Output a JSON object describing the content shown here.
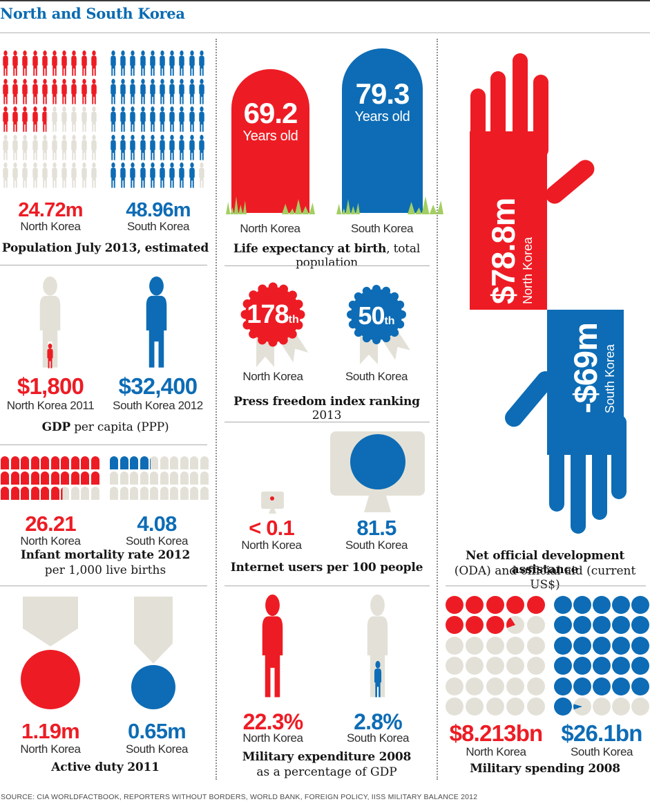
{
  "title": "North and South Korea",
  "source": "SOURCE: CIA WORLDFACTBOOK, REPORTERS WITHOUT BORDERS, WORLD BANK, FOREIGN POLICY, IISS MILITARY BALANCE 2012",
  "colors": {
    "red": "#ed1c24",
    "blue": "#0d6cb5",
    "gray": "#e3e1d7",
    "green": "#a3cf62",
    "title_blue": "#0a6bb2"
  },
  "population": {
    "caption": "Population July 2013, estimated",
    "north": {
      "value": "24.72m",
      "label": "North Korea",
      "count": 24.72,
      "total": 50,
      "columns": 10
    },
    "south": {
      "value": "48.96m",
      "label": "South Korea",
      "count": 48.96,
      "total": 50,
      "columns": 10
    }
  },
  "life_expectancy": {
    "caption_bold": "Life expectancy at birth",
    "caption_rest": ", total population",
    "north": {
      "value": "69.2",
      "unit": "Years old",
      "label": "North Korea"
    },
    "south": {
      "value": "79.3",
      "unit": "Years old",
      "label": "South Korea"
    }
  },
  "gdp": {
    "caption_bold": "GDP",
    "caption_rest": " per capita (PPP)",
    "north": {
      "value": "$1,800",
      "label": "North Korea 2011"
    },
    "south": {
      "value": "$32,400",
      "label": "South Korea 2012"
    }
  },
  "press_freedom": {
    "caption_bold": "Press freedom index ranking",
    "caption_rest": " 2013",
    "north": {
      "value": "178",
      "suffix": "th",
      "label": "North Korea"
    },
    "south": {
      "value": "50",
      "suffix": "th",
      "label": "South Korea"
    }
  },
  "infant_mortality": {
    "caption_bold": "Infant mortality rate 2012",
    "caption_rest": "per 1,000 live births",
    "north": {
      "value": "26.21",
      "label": "North Korea",
      "count": 26.21,
      "total": 30,
      "columns": 10
    },
    "south": {
      "value": "4.08",
      "label": "South Korea",
      "count": 4.08,
      "total": 30,
      "columns": 10
    }
  },
  "internet": {
    "caption": "Internet users per 100 people",
    "north": {
      "value": "< 0.1",
      "label": "North Korea"
    },
    "south": {
      "value": "81.5",
      "label": "South Korea"
    }
  },
  "oda": {
    "caption_bold": "Net official development assistance",
    "caption_rest": "(ODA) and official aid (current US$)",
    "north": {
      "value": "$78.8m",
      "label": "North Korea"
    },
    "south": {
      "value": "-$69m",
      "label": "South Korea"
    }
  },
  "active_duty": {
    "caption": "Active duty 2011",
    "north": {
      "value": "1.19m",
      "label": "North Korea"
    },
    "south": {
      "value": "0.65m",
      "label": "South Korea"
    }
  },
  "military_expenditure": {
    "caption_bold": "Military expenditure 2008",
    "caption_rest": "as a percentage of GDP",
    "north": {
      "value": "22.3%",
      "label": "North Korea"
    },
    "south": {
      "value": "2.8%",
      "label": "South Korea"
    }
  },
  "military_spending": {
    "caption": "Military spending 2008",
    "north": {
      "value": "$8.213bn",
      "label": "North Korea",
      "count": 8.213,
      "total": 30,
      "columns": 5
    },
    "south": {
      "value": "$26.1bn",
      "label": "South Korea",
      "count": 26.1,
      "total": 30,
      "columns": 5
    }
  },
  "chart_data": [
    {
      "type": "pictogram",
      "title": "Population July 2013, estimated",
      "categories": [
        "North Korea",
        "South Korea"
      ],
      "values": [
        24.72,
        48.96
      ],
      "unit": "million people",
      "icon": "person",
      "icons_per_side": 50
    },
    {
      "type": "pictogram",
      "title": "Life expectancy at birth, total population",
      "categories": [
        "North Korea",
        "South Korea"
      ],
      "values": [
        69.2,
        79.3
      ],
      "unit": "years",
      "icon": "tombstone"
    },
    {
      "type": "pictogram",
      "title": "GDP per capita (PPP)",
      "categories": [
        "North Korea 2011",
        "South Korea 2012"
      ],
      "values": [
        1800,
        32400
      ],
      "unit": "US$",
      "icon": "person-scaled"
    },
    {
      "type": "pictogram",
      "title": "Press freedom index ranking 2013",
      "categories": [
        "North Korea",
        "South Korea"
      ],
      "values": [
        178,
        50
      ],
      "unit": "rank",
      "icon": "rosette"
    },
    {
      "type": "pictogram",
      "title": "Infant mortality rate 2012 per 1,000 live births",
      "categories": [
        "North Korea",
        "South Korea"
      ],
      "values": [
        26.21,
        4.08
      ],
      "unit": "deaths per 1,000 live births",
      "icon": "tombstone-grid",
      "icons_per_side": 30
    },
    {
      "type": "pictogram",
      "title": "Internet users per 100 people",
      "categories": [
        "North Korea",
        "South Korea"
      ],
      "values": [
        0.1,
        81.5
      ],
      "value_labels": [
        "< 0.1",
        "81.5"
      ],
      "icon": "monitor"
    },
    {
      "type": "pictogram",
      "title": "Net official development assistance (ODA) and official aid (current US$)",
      "categories": [
        "North Korea",
        "South Korea"
      ],
      "values": [
        78.8,
        -69
      ],
      "unit": "million US$",
      "value_labels": [
        "$78.8m",
        "-$69m"
      ],
      "icon": "hand"
    },
    {
      "type": "pictogram",
      "title": "Active duty 2011",
      "categories": [
        "North Korea",
        "South Korea"
      ],
      "values": [
        1.19,
        0.65
      ],
      "unit": "million personnel",
      "icon": "medal"
    },
    {
      "type": "pictogram",
      "title": "Military expenditure 2008 as a percentage of GDP",
      "categories": [
        "North Korea",
        "South Korea"
      ],
      "values": [
        22.3,
        2.8
      ],
      "unit": "% of GDP",
      "icon": "person-scaled"
    },
    {
      "type": "pictogram",
      "title": "Military spending 2008",
      "categories": [
        "North Korea",
        "South Korea"
      ],
      "values": [
        8.213,
        26.1
      ],
      "unit": "billion US$",
      "value_labels": [
        "$8.213bn",
        "$26.1bn"
      ],
      "icon": "dot-grid",
      "icons_per_side": 30
    }
  ]
}
